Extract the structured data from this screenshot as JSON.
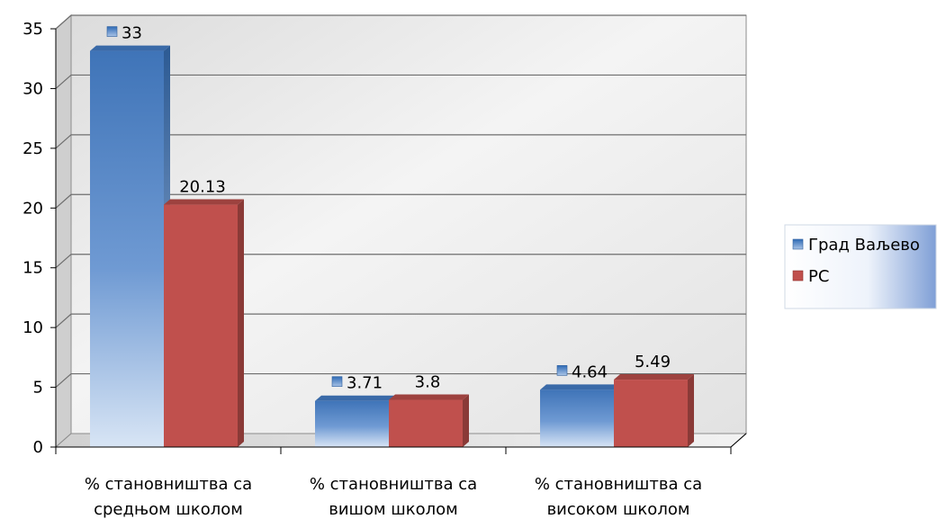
{
  "chart_data": {
    "type": "bar",
    "categories": [
      [
        "% становништва са",
        "средњом школом"
      ],
      [
        "% становништва са",
        "вишом школом"
      ],
      [
        "% становништва са",
        "високом школом"
      ]
    ],
    "series": [
      {
        "name": "Град Ваљево",
        "values": [
          33,
          3.71,
          4.64
        ],
        "labels": [
          "33",
          "3.71",
          "4.64"
        ],
        "color": "#4f81bd"
      },
      {
        "name": "РС",
        "values": [
          20.13,
          3.8,
          5.49
        ],
        "labels": [
          "20.13",
          "3.8",
          "5.49"
        ],
        "color": "#c0504d"
      }
    ],
    "ylim": [
      0,
      35
    ],
    "yticks": [
      "0",
      "5",
      "10",
      "15",
      "20",
      "25",
      "30",
      "35"
    ],
    "grid": true,
    "legend_position": "right",
    "style": "3d-clustered-column"
  }
}
